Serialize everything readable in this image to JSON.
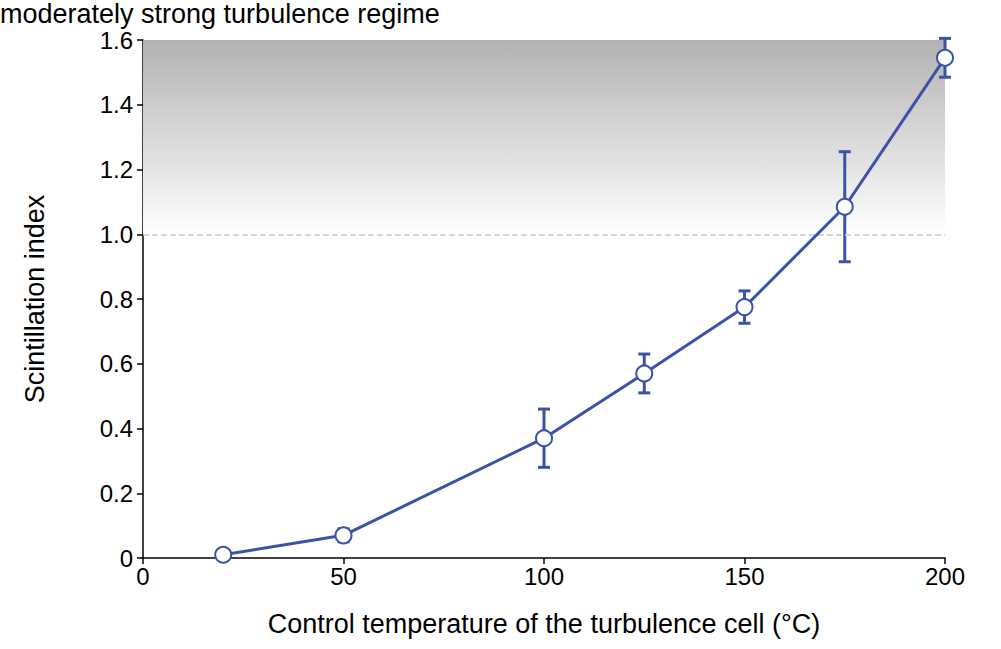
{
  "chart_data": {
    "type": "line",
    "x_label": "Control temperature of the turbulence cell (°C)",
    "y_label": "Scintillation index",
    "x": [
      20,
      50,
      100,
      125,
      150,
      175,
      200
    ],
    "values": [
      0.01,
      0.07,
      0.37,
      0.57,
      0.775,
      1.085,
      1.545
    ],
    "errors": [
      0,
      0.02,
      0.09,
      0.06,
      0.05,
      0.17,
      0.06
    ],
    "color": "#3a53a4",
    "marker": "circle",
    "xlim": [
      0,
      200
    ],
    "xticks": [
      0,
      50,
      100,
      150,
      200
    ],
    "ylim": [
      0,
      1.6
    ],
    "yticks": [
      0,
      0.2,
      0.4,
      0.6,
      0.8,
      {
        "value": 1,
        "label": "1.0"
      },
      1.2,
      1.4,
      1.6
    ],
    "grid": false,
    "region": {
      "label": "moderately strong turbulence regime",
      "y_from": 1,
      "y_to": 1.6
    }
  }
}
